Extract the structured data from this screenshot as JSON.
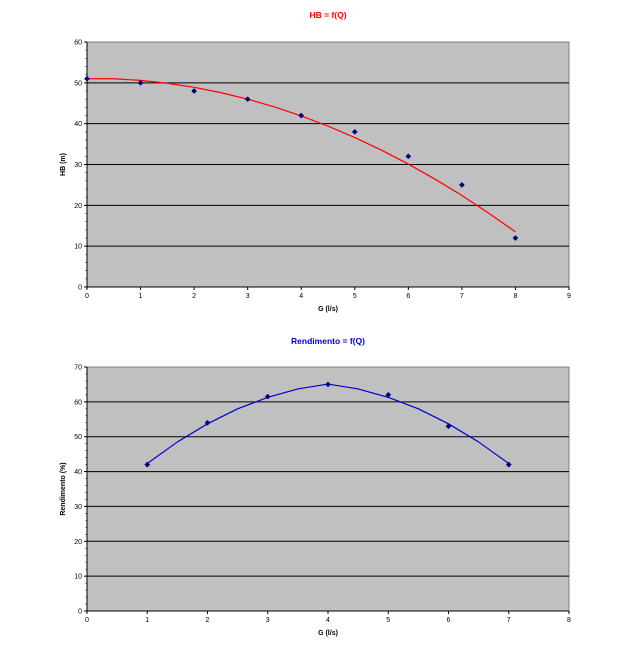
{
  "chart_data": [
    {
      "type": "scatter",
      "title": "HB = f(Q)",
      "title_color": "#ff0000",
      "xlabel": "G (l/s)",
      "ylabel": "HB (m)",
      "xlim": [
        0,
        9
      ],
      "ylim": [
        0,
        60
      ],
      "xticks": [
        "0",
        "1",
        "2",
        "3",
        "4",
        "5",
        "6",
        "7",
        "8",
        "9"
      ],
      "yticks": [
        "0",
        "10",
        "20",
        "30",
        "40",
        "50",
        "60"
      ],
      "grid": "horizontal",
      "plot_bg": "#c0c0c0",
      "marker_color": "#000080",
      "trend_color": "#ff0000",
      "series": [
        {
          "x": [
            0,
            1,
            2,
            3,
            4,
            5,
            6,
            7,
            8
          ],
          "y": [
            51,
            50,
            48,
            46,
            42,
            38,
            32,
            25,
            12
          ]
        }
      ],
      "trendline": {
        "type": "polynomial",
        "x": [
          0,
          0.5,
          1,
          1.5,
          2,
          2.5,
          3,
          3.5,
          4,
          4.5,
          5,
          5.5,
          6,
          6.5,
          7,
          7.5,
          8
        ],
        "y": [
          51.0,
          51.0,
          50.6,
          49.9,
          48.9,
          47.6,
          46.0,
          44.1,
          41.9,
          39.4,
          36.6,
          33.5,
          30.1,
          26.4,
          22.4,
          18.1,
          13.5
        ]
      }
    },
    {
      "type": "scatter",
      "title": "Rendimento = f(Q)",
      "title_color": "#0000cc",
      "xlabel": "G (l/s)",
      "ylabel": "Rendimento (%)",
      "xlim": [
        0,
        8
      ],
      "ylim": [
        0,
        70
      ],
      "xticks": [
        "0",
        "1",
        "2",
        "3",
        "4",
        "5",
        "6",
        "7",
        "8"
      ],
      "yticks": [
        "0",
        "10",
        "20",
        "30",
        "40",
        "50",
        "60",
        "70"
      ],
      "grid": "horizontal",
      "plot_bg": "#c0c0c0",
      "marker_color": "#000080",
      "trend_color": "#0000cc",
      "series": [
        {
          "x": [
            1,
            2,
            3,
            4,
            5,
            6,
            7
          ],
          "y": [
            42,
            54,
            61.5,
            65,
            62,
            53,
            42
          ]
        }
      ],
      "trendline": {
        "type": "polynomial",
        "x": [
          1,
          1.5,
          2,
          2.5,
          3,
          3.5,
          4,
          4.5,
          5,
          5.5,
          6,
          6.5,
          7
        ],
        "y": [
          42.3,
          48.5,
          53.7,
          58.0,
          61.3,
          63.7,
          65.1,
          63.7,
          61.3,
          58.0,
          53.7,
          48.5,
          42.3
        ]
      }
    }
  ]
}
